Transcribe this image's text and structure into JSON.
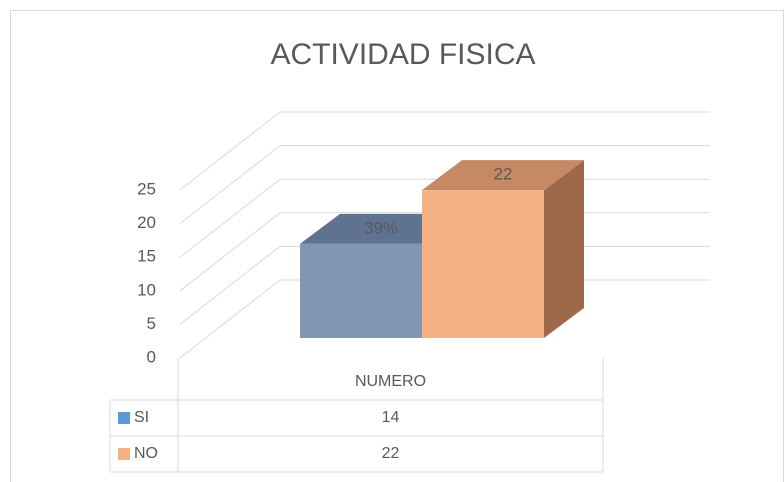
{
  "chart_data": {
    "type": "bar3d",
    "title": "ACTIVIDAD FISICA",
    "categories": [
      "NUMERO"
    ],
    "series": [
      {
        "name": "SI",
        "color": "#8096b4",
        "top_color": "#5f7290",
        "side_color": "#50607a",
        "legend_color": "#5b9bd5",
        "values": [
          14
        ],
        "data_labels": [
          "39%"
        ]
      },
      {
        "name": "NO",
        "color": "#f4b183",
        "top_color": "#c58a64",
        "side_color": "#9c6a4b",
        "legend_color": "#f4b183",
        "values": [
          22
        ],
        "data_labels": [
          "22"
        ]
      }
    ],
    "ylim": [
      0,
      25
    ],
    "yticks": [
      0,
      5,
      10,
      15,
      20,
      25
    ],
    "grid": true,
    "data_table": true
  }
}
